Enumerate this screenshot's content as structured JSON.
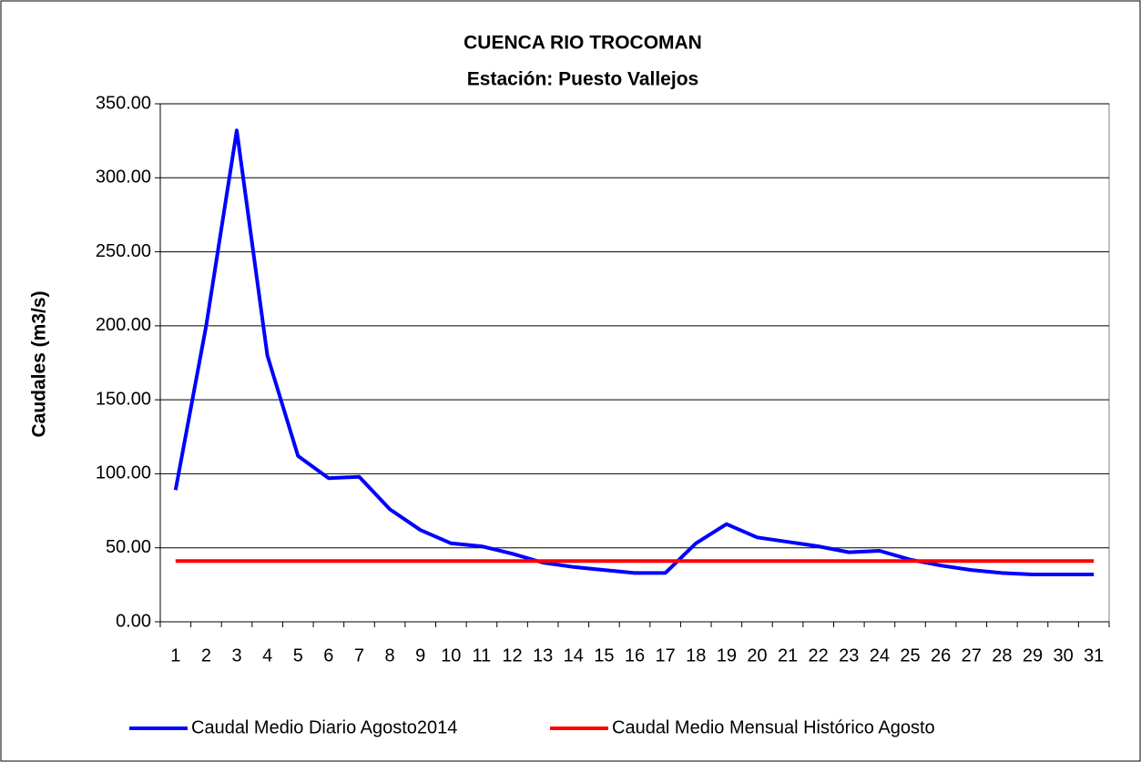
{
  "chart_data": {
    "type": "line",
    "title": "CUENCA RIO TROCOMAN",
    "subtitle": "Estación: Puesto Vallejos",
    "y_label": "Caudales (m3/s)",
    "categories": [
      "1",
      "2",
      "3",
      "4",
      "5",
      "6",
      "7",
      "8",
      "9",
      "10",
      "11",
      "12",
      "13",
      "14",
      "15",
      "16",
      "17",
      "18",
      "19",
      "20",
      "21",
      "22",
      "23",
      "24",
      "25",
      "26",
      "27",
      "28",
      "29",
      "30",
      "31"
    ],
    "series": [
      {
        "name": "Caudal Medio Diario Agosto2014",
        "color": "#0000ff",
        "values": [
          89,
          200,
          332,
          180,
          112,
          97,
          98,
          76,
          62,
          53,
          51,
          46,
          40,
          37,
          35,
          33,
          33,
          53,
          66,
          57,
          54,
          51,
          47,
          48,
          42,
          38,
          35,
          33,
          32,
          32,
          32
        ]
      },
      {
        "name": "Caudal Medio Mensual Histórico Agosto",
        "color": "#ff0000",
        "values": [
          41,
          41,
          41,
          41,
          41,
          41,
          41,
          41,
          41,
          41,
          41,
          41,
          41,
          41,
          41,
          41,
          41,
          41,
          41,
          41,
          41,
          41,
          41,
          41,
          41,
          41,
          41,
          41,
          41,
          41,
          41
        ]
      }
    ],
    "ylim": [
      0,
      350
    ],
    "yticks": [
      {
        "value": 0,
        "label": "0.00"
      },
      {
        "value": 50,
        "label": "50.00"
      },
      {
        "value": 100,
        "label": "100.00"
      },
      {
        "value": 150,
        "label": "150.00"
      },
      {
        "value": 200,
        "label": "200.00"
      },
      {
        "value": 250,
        "label": "250.00"
      },
      {
        "value": 300,
        "label": "300.00"
      },
      {
        "value": 350,
        "label": "350.00"
      }
    ],
    "grid": true,
    "legend": "bottom"
  }
}
